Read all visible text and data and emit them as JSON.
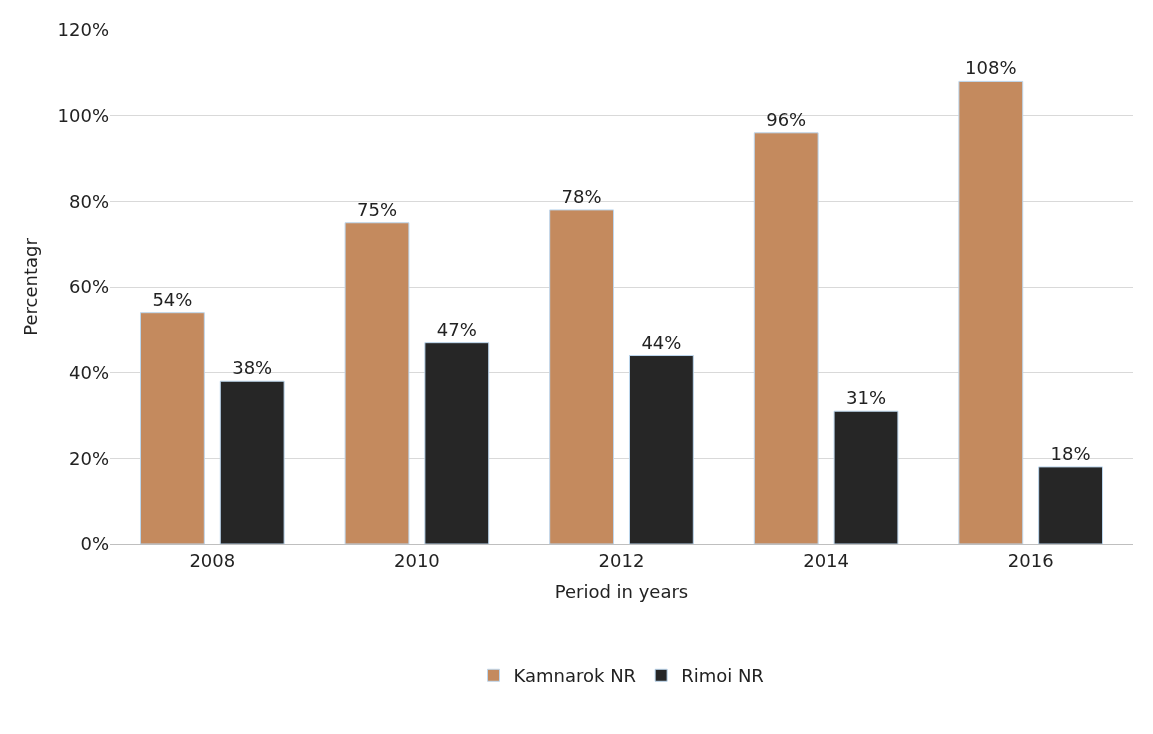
{
  "chart_data": {
    "type": "bar",
    "xlabel": "Period in years",
    "ylabel": "Percentagr",
    "categories": [
      "2008",
      "2010",
      "2012",
      "2014",
      "2016"
    ],
    "series": [
      {
        "name": "Kamnarok NR",
        "color": "#c48a5e",
        "values": [
          54,
          75,
          78,
          96,
          108
        ],
        "value_labels": [
          "54%",
          "75%",
          "78%",
          "96%",
          "108%"
        ]
      },
      {
        "name": "Rimoi NR",
        "color": "#262626",
        "values": [
          38,
          47,
          44,
          31,
          18
        ],
        "value_labels": [
          "38%",
          "47%",
          "44%",
          "31%",
          "18%"
        ]
      }
    ],
    "ylim": [
      0,
      120
    ],
    "yticks": [
      {
        "value": 0,
        "label": "0%"
      },
      {
        "value": 20,
        "label": "20%"
      },
      {
        "value": 40,
        "label": "40%"
      },
      {
        "value": 60,
        "label": "60%"
      },
      {
        "value": 80,
        "label": "80%"
      },
      {
        "value": 100,
        "label": "100%"
      },
      {
        "value": 120,
        "label": "120%"
      }
    ],
    "grid": "y",
    "legend": "bottom"
  }
}
